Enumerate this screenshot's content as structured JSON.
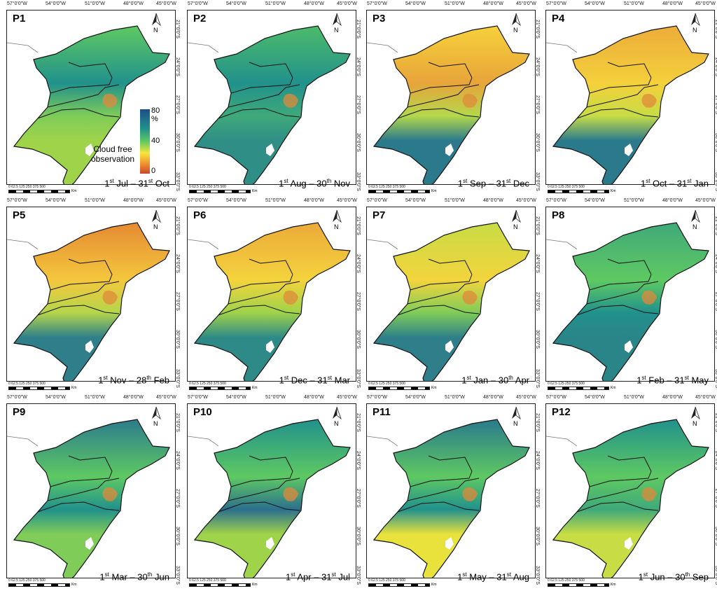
{
  "legend": {
    "max": "80 %",
    "mid": "40",
    "min": "0",
    "title_line1": "Cloud free",
    "title_line2": "observation",
    "gradient_colors": [
      "#1d4e89",
      "#21918c",
      "#5ec962",
      "#f6e53b",
      "#f0902e",
      "#c9472c"
    ]
  },
  "axes": {
    "lon_labels": [
      "57°0'0\"W",
      "54°0'0\"W",
      "51°0'0\"W",
      "48°0'0\"W",
      "45°0'0\"W"
    ],
    "lat_labels": [
      "21°0'0\"S",
      "24°0'0\"S",
      "27°0'0\"S",
      "30°0'0\"S",
      "33°0'0\"S"
    ]
  },
  "north_arrow": "N",
  "scale_bar": {
    "ticks": "0  62.5 125       250        375        500",
    "unit": "Km"
  },
  "panels": [
    {
      "label": "P1",
      "start_day": "1",
      "start_sup": "st",
      "start_month": "Jul",
      "end_day": "31",
      "end_sup": "st",
      "end_month": "Oct",
      "palette": [
        "#5ec962",
        "#21918c",
        "#7fcc58"
      ],
      "south": "#9fd34a"
    },
    {
      "label": "P2",
      "start_day": "1",
      "start_sup": "st",
      "start_month": "Aug",
      "end_day": "30",
      "end_sup": "th",
      "end_month": "Nov",
      "palette": [
        "#4dbb6a",
        "#21918c",
        "#3fa97a"
      ],
      "south": "#2f8f86"
    },
    {
      "label": "P3",
      "start_day": "1",
      "start_sup": "st",
      "start_month": "Sep",
      "end_day": "31",
      "end_sup": "st",
      "end_month": "Dec",
      "palette": [
        "#f6d13b",
        "#e7a43a",
        "#b4d84b"
      ],
      "south": "#2a7a8c"
    },
    {
      "label": "P4",
      "start_day": "1",
      "start_sup": "st",
      "start_month": "Oct",
      "end_day": "31",
      "end_sup": "st",
      "end_month": "Jan",
      "palette": [
        "#ecac3a",
        "#f4d03b",
        "#c7dc45"
      ],
      "south": "#2a7a8c"
    },
    {
      "label": "P5",
      "start_day": "1",
      "start_sup": "st",
      "start_month": "Nov",
      "end_day": "28",
      "end_sup": "th",
      "end_month": "Feb",
      "palette": [
        "#e58a33",
        "#f4c73d",
        "#b5d64a"
      ],
      "south": "#2e7f8a"
    },
    {
      "label": "P6",
      "start_day": "1",
      "start_sup": "st",
      "start_month": "Dec",
      "end_day": "31",
      "end_sup": "st",
      "end_month": "Mar",
      "palette": [
        "#ebaa3a",
        "#f4d33c",
        "#9fd34a"
      ],
      "south": "#2e8a86"
    },
    {
      "label": "P7",
      "start_day": "1",
      "start_sup": "st",
      "start_month": "Jan",
      "end_day": "30",
      "end_sup": "th",
      "end_month": "Apr",
      "palette": [
        "#c8dc45",
        "#f3d43c",
        "#7fcc58"
      ],
      "south": "#2e7f8a"
    },
    {
      "label": "P8",
      "start_day": "1",
      "start_sup": "st",
      "start_month": "Feb",
      "end_day": "31",
      "end_sup": "st",
      "end_month": "May",
      "palette": [
        "#3fa97a",
        "#5ec962",
        "#21918c"
      ],
      "south": "#2a8588"
    },
    {
      "label": "P9",
      "start_day": "1",
      "start_sup": "st",
      "start_month": "Mar",
      "end_day": "30",
      "end_sup": "th",
      "end_month": "Jun",
      "palette": [
        "#2c7c8c",
        "#5ec962",
        "#21918c"
      ],
      "south": "#7fcc58"
    },
    {
      "label": "P10",
      "start_day": "1",
      "start_sup": "st",
      "start_month": "Apr",
      "end_day": "31",
      "end_sup": "st",
      "end_month": "Jul",
      "palette": [
        "#21918c",
        "#5ec962",
        "#2c6f8e"
      ],
      "south": "#9fd34a"
    },
    {
      "label": "P11",
      "start_day": "1",
      "start_sup": "st",
      "start_month": "May",
      "end_day": "31",
      "end_sup": "st",
      "end_month": "Aug",
      "palette": [
        "#2a7a8c",
        "#5ec962",
        "#21918c"
      ],
      "south": "#e9e13c"
    },
    {
      "label": "P12",
      "start_day": "1",
      "start_sup": "st",
      "start_month": "Jun",
      "end_day": "30",
      "end_sup": "th",
      "end_month": "Sep",
      "palette": [
        "#21918c",
        "#5ec962",
        "#3fa97a"
      ],
      "south": "#c7dc45"
    }
  ]
}
